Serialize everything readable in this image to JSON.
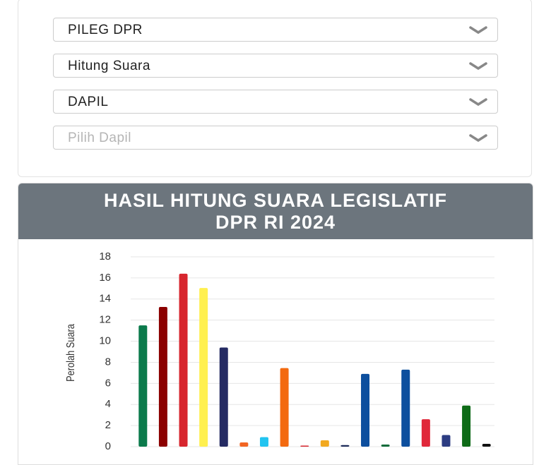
{
  "filters": [
    {
      "label": "PILEG DPR",
      "placeholder": false
    },
    {
      "label": "Hitung Suara",
      "placeholder": false
    },
    {
      "label": "DAPIL",
      "placeholder": false
    },
    {
      "label": "Pilih Dapil",
      "placeholder": true
    }
  ],
  "chart_data": {
    "type": "bar",
    "title": "HASIL HITUNG SUARA LEGISLATIF DPR RI 2024",
    "ylabel": "Perolah Suara",
    "categories": [
      null,
      null,
      null,
      null,
      null,
      null,
      null,
      null,
      null,
      null,
      null,
      null,
      null,
      null,
      null,
      null,
      null,
      null
    ],
    "values": [
      11.5,
      13.25,
      16.4,
      15.05,
      9.4,
      0.4,
      0.9,
      7.45,
      0.1,
      0.6,
      0.15,
      6.9,
      0.2,
      7.3,
      2.6,
      1.1,
      3.9,
      0.27
    ],
    "colors": [
      "#0b7a4b",
      "#8b0000",
      "#d7262e",
      "#fff04f",
      "#252b63",
      "#f26522",
      "#22c4f0",
      "#f36a10",
      "#d7262e",
      "#f2a91f",
      "#1d2c5a",
      "#0d4f9e",
      "#0f6b3a",
      "#0d4f9e",
      "#e0283a",
      "#2c3c82",
      "#0e6b17",
      "#111111"
    ],
    "ylim": [
      0,
      18
    ],
    "yticks": [
      0,
      2,
      4,
      6,
      8,
      10,
      12,
      14,
      16,
      18
    ],
    "grid": true
  }
}
